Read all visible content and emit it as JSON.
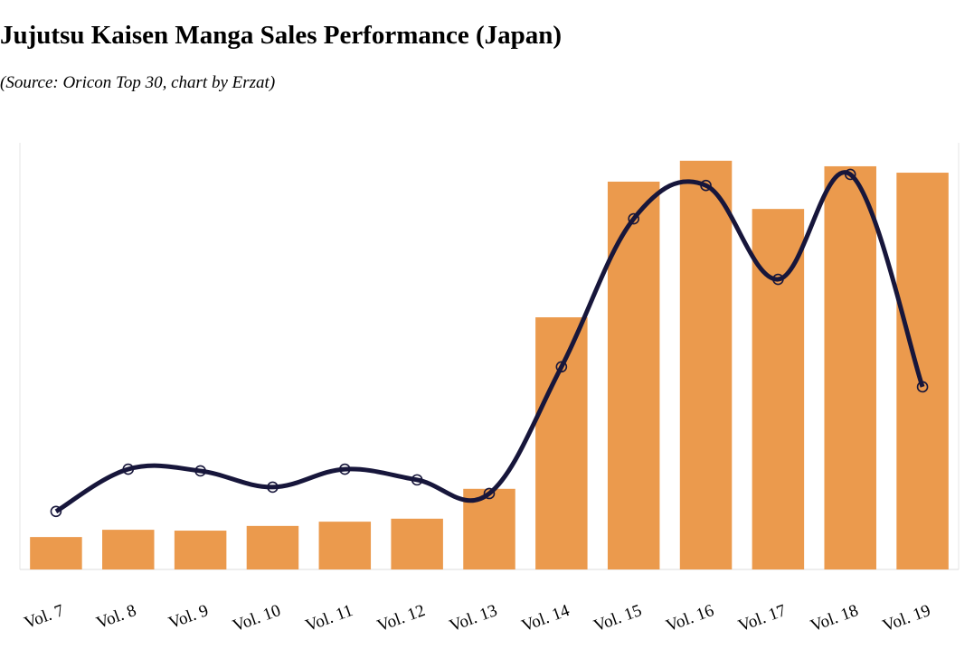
{
  "chart_data": {
    "type": "bar-line",
    "title": "Jujutsu Kaisen Manga Sales Performance (Japan)",
    "subtitle": "(Source: Oricon Top 30, chart by Erzat)",
    "categories": [
      "Vol. 7",
      "Vol. 8",
      "Vol. 9",
      "Vol. 10",
      "Vol. 11",
      "Vol. 12",
      "Vol. 13",
      "Vol. 14",
      "Vol. 15",
      "Vol. 16",
      "Vol. 17",
      "Vol. 18",
      "Vol. 19"
    ],
    "series": [
      {
        "kind": "bar",
        "color": "#eb9a4d",
        "values": [
          7.6,
          9.3,
          9.1,
          10.2,
          11.2,
          11.9,
          18.9,
          59.1,
          90.9,
          95.8,
          84.5,
          94.5,
          93.0
        ]
      },
      {
        "kind": "line",
        "axis": "y2",
        "color": "#17163b",
        "values": [
          13.6,
          23.5,
          23.1,
          19.3,
          23.5,
          21.0,
          17.8,
          47.5,
          82.2,
          90.0,
          68.0,
          92.6,
          42.8
        ]
      }
    ],
    "ylim": [
      0,
      100
    ],
    "y2lim": [
      0,
      100
    ]
  }
}
